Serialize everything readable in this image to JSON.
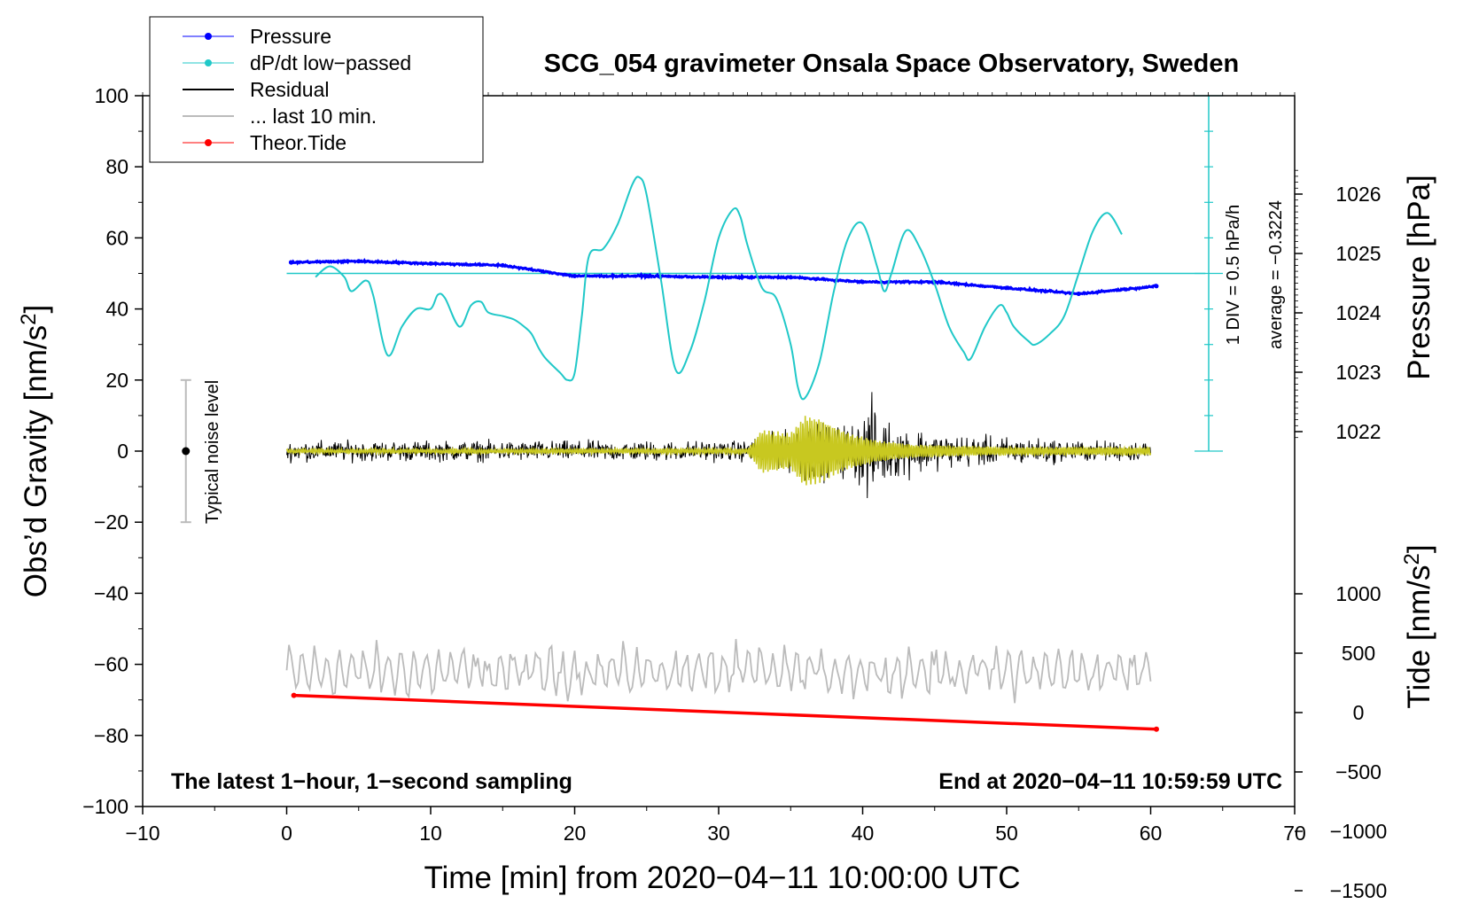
{
  "chart_data": {
    "type": "line",
    "title": "SCG_054 gravimeter Onsala Space Observatory, Sweden",
    "xlabel": "Time [min] from 2020−04−11 10:00:00 UTC",
    "ylabel": "Obs’d Gravity [nm/s²]",
    "xlim": [
      -10,
      70
    ],
    "ylim": [
      -100,
      100
    ],
    "x_ticks": [
      "−10",
      "0",
      "10",
      "20",
      "30",
      "40",
      "50",
      "60",
      "70"
    ],
    "y_ticks": [
      "−100",
      "−80",
      "−60",
      "−40",
      "−20",
      "0",
      "20",
      "40",
      "60",
      "80",
      "100"
    ],
    "pressure_axis": {
      "label": "Pressure [hPa]",
      "ticks": [
        "1022",
        "1023",
        "1024",
        "1025",
        "1026"
      ]
    },
    "tide_axis": {
      "label": "Tide [nm/s²]",
      "ticks": [
        "−1500",
        "−1000",
        "−500",
        "0",
        "500",
        "1000"
      ]
    },
    "legend": {
      "position": "top-left",
      "entries": [
        {
          "label": "Pressure",
          "color": "#0000ff"
        },
        {
          "label": "dP/dt low−passed",
          "color": "#20c8c8"
        },
        {
          "label": "Residual",
          "color": "#000000"
        },
        {
          "label": "... last 10 min.",
          "color": "#bbbbbb"
        },
        {
          "label": "Theor.Tide",
          "color": "#ff0000"
        }
      ]
    },
    "noise_label": "Typical noise level",
    "noise_range": [
      -20,
      20
    ],
    "noise_x": -7,
    "dpdt_scale_label": "1 DIV = 0.5 hPa/h",
    "dpdt_average_label": "average = −0.3224",
    "dpdt_average_line_y": 50,
    "footer_left": "The latest 1−hour, 1−second sampling",
    "footer_right": "End at 2020−04−11 10:59:59 UTC",
    "series": [
      {
        "name": "Pressure",
        "unit": "hPa",
        "x": [
          0.3,
          5,
          10,
          15,
          20,
          25,
          30,
          35,
          40,
          45,
          50,
          55,
          60.4
        ],
        "values": [
          1024.85,
          1024.87,
          1024.83,
          1024.8,
          1024.62,
          1024.62,
          1024.6,
          1024.6,
          1024.52,
          1024.52,
          1024.42,
          1024.32,
          1024.45
        ]
      },
      {
        "name": "dP/dt low−passed",
        "unit": "gravity-scale",
        "x": [
          2,
          3,
          4,
          4.5,
          5.5,
          6,
          7,
          8,
          9,
          10,
          10.5,
          11,
          12,
          12.8,
          13.5,
          14,
          15,
          15.8,
          16.5,
          17,
          17.5,
          18,
          19,
          19.5,
          20,
          20.5,
          21,
          22,
          23,
          24,
          24.5,
          25,
          26,
          27,
          28,
          29,
          30,
          31,
          31.5,
          32,
          33,
          34,
          35,
          35.5,
          36,
          37,
          38,
          39,
          40,
          41,
          41.5,
          42,
          43,
          44,
          45,
          46,
          47,
          47.5,
          48.5,
          49.5,
          50,
          50.5,
          51.5,
          52,
          53,
          54,
          55,
          56,
          57,
          58
        ],
        "values": [
          49,
          52,
          49,
          45,
          48,
          44,
          27,
          35,
          40,
          40,
          44,
          43,
          35,
          41,
          42,
          39,
          38,
          37,
          35,
          33,
          29,
          26,
          22,
          20,
          22,
          38,
          55,
          57,
          64,
          75,
          77,
          72,
          48,
          23,
          28,
          42,
          60,
          68,
          66,
          58,
          46,
          43,
          30,
          18,
          15,
          25,
          45,
          60,
          64,
          52,
          45,
          50,
          62,
          57,
          47,
          35,
          28,
          26,
          35,
          41,
          39,
          35,
          31,
          30,
          33,
          38,
          50,
          62,
          67,
          61
        ]
      },
      {
        "name": "Residual",
        "unit": "nm/s²",
        "x": [
          0,
          32,
          33,
          35,
          36,
          37,
          38,
          39,
          40,
          40.5,
          41,
          42,
          43,
          44,
          45,
          48,
          52,
          56,
          60
        ],
        "amplitudes": [
          4,
          4,
          6,
          8,
          13,
          11,
          10,
          11,
          14,
          22,
          15,
          11,
          10,
          9,
          7,
          6,
          5,
          4,
          4
        ]
      },
      {
        "name": "Residual yellow overlay",
        "unit": "nm/s²",
        "color": "#c8c820",
        "x": [
          0,
          32,
          33,
          35,
          36,
          37,
          39,
          40,
          41,
          43,
          45,
          50,
          60
        ],
        "amplitudes": [
          0.5,
          0.6,
          6,
          5,
          10,
          9,
          5,
          4,
          3,
          2,
          1.5,
          1,
          1
        ]
      },
      {
        "name": "... last 10 min.",
        "unit": "nm/s²",
        "x": [
          0,
          60
        ],
        "offset": -62,
        "amplitude": 6
      },
      {
        "name": "Theor.Tide",
        "unit": "nm/s²",
        "x": [
          0.5,
          60.4
        ],
        "values": [
          145,
          -140
        ]
      }
    ]
  }
}
